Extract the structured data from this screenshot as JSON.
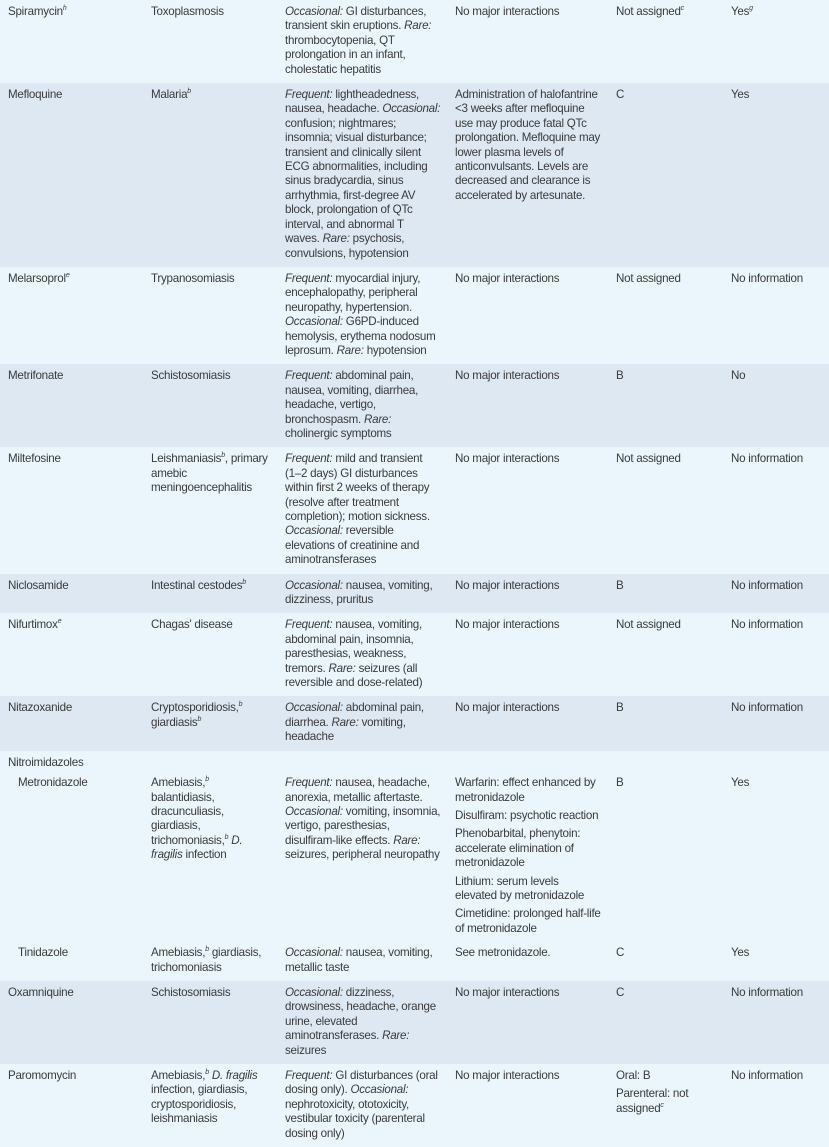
{
  "colors": {
    "row_light": "#eaf6fc",
    "row_dark": "#dde8f3",
    "text": "#3a3a3a"
  },
  "rows": [
    {
      "shade": "light",
      "name": [
        {
          "t": "Spiramycin"
        },
        {
          "sup": "h"
        }
      ],
      "indication": [
        [
          "Toxoplasmosis"
        ]
      ],
      "adverse": [
        [
          {
            "i": "Occasional:"
          },
          {
            "t": " GI disturbances, transient skin eruptions. "
          },
          {
            "i": "Rare:"
          },
          {
            "t": " thrombocytopenia, QT prolongation in an infant, cholestatic hepatitis"
          }
        ]
      ],
      "interactions": [
        [
          "No major interactions"
        ]
      ],
      "pregnancy": [
        [
          {
            "t": "Not assigned"
          },
          {
            "sup": "c"
          }
        ]
      ],
      "breastfeeding": [
        [
          {
            "t": "Yes"
          },
          {
            "sup": "g"
          }
        ]
      ]
    },
    {
      "shade": "dark",
      "name": [
        {
          "t": "Mefloquine"
        }
      ],
      "indication": [
        [
          {
            "t": "Malaria"
          },
          {
            "sup": "b"
          }
        ]
      ],
      "adverse": [
        [
          {
            "i": "Frequent:"
          },
          {
            "t": " lightheadedness, nausea, headache. "
          },
          {
            "i": "Occasional:"
          },
          {
            "t": " confusion; nightmares; insomnia; visual disturbance; transient and clinically silent ECG abnormalities, including sinus bradycardia, sinus arrhythmia, first-degree AV block, prolongation of QTc interval, and abnormal T waves. "
          },
          {
            "i": "Rare:"
          },
          {
            "t": " psychosis, convulsions, hypotension"
          }
        ]
      ],
      "interactions": [
        [
          "Administration of halofantrine <3 weeks after mefloquine use may produce fatal QTc prolongation. Mefloquine may lower plasma levels of anticonvulsants. Levels are decreased and clearance is accelerated by artesunate."
        ]
      ],
      "pregnancy": [
        [
          "C"
        ]
      ],
      "breastfeeding": [
        [
          "Yes"
        ]
      ]
    },
    {
      "shade": "light",
      "name": [
        {
          "t": "Melarsoprol"
        },
        {
          "sup": "e"
        }
      ],
      "indication": [
        [
          "Trypanosomiasis"
        ]
      ],
      "adverse": [
        [
          {
            "i": "Frequent:"
          },
          {
            "t": " myocardial injury, encephalopathy, peripheral neuropathy, hypertension. "
          },
          {
            "i": "Occasional:"
          },
          {
            "t": " G6PD-induced hemolysis, erythema nodosum leprosum. "
          },
          {
            "i": "Rare:"
          },
          {
            "t": " hypotension"
          }
        ]
      ],
      "interactions": [
        [
          "No major interactions"
        ]
      ],
      "pregnancy": [
        [
          "Not assigned"
        ]
      ],
      "breastfeeding": [
        [
          "No information"
        ]
      ]
    },
    {
      "shade": "dark",
      "name": [
        {
          "t": "Metrifonate"
        }
      ],
      "indication": [
        [
          "Schistosomiasis"
        ]
      ],
      "adverse": [
        [
          {
            "i": "Frequent:"
          },
          {
            "t": " abdominal pain, nausea, vomiting, diarrhea, headache, vertigo, bronchospasm. "
          },
          {
            "i": "Rare:"
          },
          {
            "t": " cholinergic symptoms"
          }
        ]
      ],
      "interactions": [
        [
          "No major interactions"
        ]
      ],
      "pregnancy": [
        [
          "B"
        ]
      ],
      "breastfeeding": [
        [
          "No"
        ]
      ]
    },
    {
      "shade": "light",
      "name": [
        {
          "t": "Miltefosine"
        }
      ],
      "indication": [
        [
          {
            "t": "Leishmaniasis"
          },
          {
            "sup": "b"
          },
          {
            "t": ", primary amebic meningoencephalitis"
          }
        ]
      ],
      "adverse": [
        [
          {
            "i": "Frequent:"
          },
          {
            "t": " mild and transient (1–2 days) GI disturbances within first 2 weeks of therapy (resolve after treatment completion); motion sickness. "
          },
          {
            "i": "Occasional:"
          },
          {
            "t": " reversible elevations of creatinine and aminotransferases"
          }
        ]
      ],
      "interactions": [
        [
          "No major interactions"
        ]
      ],
      "pregnancy": [
        [
          "Not assigned"
        ]
      ],
      "breastfeeding": [
        [
          "No information"
        ]
      ]
    },
    {
      "shade": "dark",
      "name": [
        {
          "t": "Niclosamide"
        }
      ],
      "indication": [
        [
          {
            "t": "Intestinal cestodes"
          },
          {
            "sup": "b"
          }
        ]
      ],
      "adverse": [
        [
          {
            "i": "Occasional:"
          },
          {
            "t": " nausea, vomiting, dizziness, pruritus"
          }
        ]
      ],
      "interactions": [
        [
          "No major interactions"
        ]
      ],
      "pregnancy": [
        [
          "B"
        ]
      ],
      "breastfeeding": [
        [
          "No information"
        ]
      ]
    },
    {
      "shade": "light",
      "name": [
        {
          "t": "Nifurtimox"
        },
        {
          "sup": "e"
        }
      ],
      "indication": [
        [
          "Chagas' disease"
        ]
      ],
      "adverse": [
        [
          {
            "i": "Frequent:"
          },
          {
            "t": " nausea, vomiting, abdominal pain, insomnia, paresthesias, weakness, tremors. "
          },
          {
            "i": "Rare:"
          },
          {
            "t": " seizures (all reversible and dose-related)"
          }
        ]
      ],
      "interactions": [
        [
          "No major interactions"
        ]
      ],
      "pregnancy": [
        [
          "Not assigned"
        ]
      ],
      "breastfeeding": [
        [
          "No information"
        ]
      ]
    },
    {
      "shade": "dark",
      "name": [
        {
          "t": "Nitazoxanide"
        }
      ],
      "indication": [
        [
          {
            "t": "Cryptosporidiosis,"
          },
          {
            "sup": "b"
          },
          {
            "t": " giardiasis"
          },
          {
            "sup": "b"
          }
        ]
      ],
      "adverse": [
        [
          {
            "i": "Occasional:"
          },
          {
            "t": " abdominal pain, diarrhea. "
          },
          {
            "i": "Rare:"
          },
          {
            "t": " vomiting, headache"
          }
        ]
      ],
      "interactions": [
        [
          "No major interactions"
        ]
      ],
      "pregnancy": [
        [
          "B"
        ]
      ],
      "breastfeeding": [
        [
          "No information"
        ]
      ]
    },
    {
      "shade": "light",
      "group": true,
      "name": [
        {
          "t": "Nitroimidazoles"
        }
      ]
    },
    {
      "shade": "light",
      "sub": true,
      "name": [
        {
          "t": "Metronidazole"
        }
      ],
      "indication": [
        [
          {
            "t": "Amebiasis,"
          },
          {
            "sup": "b"
          },
          {
            "t": " balantidiasis, dracunculiasis, giardiasis, trichomoniasis,"
          },
          {
            "sup": "b"
          },
          {
            "t": " "
          },
          {
            "i": "D. fragilis"
          },
          {
            "t": " infection"
          }
        ]
      ],
      "adverse": [
        [
          {
            "i": "Frequent:"
          },
          {
            "t": " nausea, headache, anorexia, metallic aftertaste. "
          },
          {
            "i": "Occasional:"
          },
          {
            "t": " vomiting, insomnia, vertigo, paresthesias, disulfiram-like effects. "
          },
          {
            "i": "Rare:"
          },
          {
            "t": " seizures, peripheral neuropathy"
          }
        ]
      ],
      "interactions": [
        [
          "Warfarin: effect enhanced by metronidazole"
        ],
        [
          "Disulfiram: psychotic reaction"
        ],
        [
          "Phenobarbital, phenytoin: accelerate elimination of metronidazole"
        ],
        [
          "Lithium: serum levels elevated by metronidazole"
        ],
        [
          "Cimetidine: prolonged half-life of metronidazole"
        ]
      ],
      "pregnancy": [
        [
          "B"
        ]
      ],
      "breastfeeding": [
        [
          "Yes"
        ]
      ]
    },
    {
      "shade": "light",
      "sub": true,
      "name": [
        {
          "t": "Tinidazole"
        }
      ],
      "indication": [
        [
          {
            "t": "Amebiasis,"
          },
          {
            "sup": "b"
          },
          {
            "t": " giardiasis, trichomoniasis"
          }
        ]
      ],
      "adverse": [
        [
          {
            "i": "Occasional:"
          },
          {
            "t": " nausea, vomiting, metallic taste"
          }
        ]
      ],
      "interactions": [
        [
          "See metronidazole."
        ]
      ],
      "pregnancy": [
        [
          "C"
        ]
      ],
      "breastfeeding": [
        [
          "Yes"
        ]
      ]
    },
    {
      "shade": "dark",
      "name": [
        {
          "t": "Oxamniquine"
        }
      ],
      "indication": [
        [
          "Schistosomiasis"
        ]
      ],
      "adverse": [
        [
          {
            "i": "Occasional:"
          },
          {
            "t": " dizziness, drowsiness, headache, orange urine, elevated aminotransferases. "
          },
          {
            "i": "Rare:"
          },
          {
            "t": " seizures"
          }
        ]
      ],
      "interactions": [
        [
          "No major interactions"
        ]
      ],
      "pregnancy": [
        [
          "C"
        ]
      ],
      "breastfeeding": [
        [
          "No information"
        ]
      ]
    },
    {
      "shade": "light",
      "name": [
        {
          "t": "Paromomycin"
        }
      ],
      "indication": [
        [
          {
            "t": "Amebiasis,"
          },
          {
            "sup": "b"
          },
          {
            "t": " "
          },
          {
            "i": "D. fragilis"
          },
          {
            "t": " infection, giardiasis, cryptosporidiosis, leishmaniasis"
          }
        ]
      ],
      "adverse": [
        [
          {
            "i": "Frequent:"
          },
          {
            "t": " GI disturbances (oral dosing only). "
          },
          {
            "i": "Occasional:"
          },
          {
            "t": " nephrotoxicity, ototoxicity, vestibular toxicity (parenteral dosing only)"
          }
        ]
      ],
      "interactions": [
        [
          "No major interactions"
        ]
      ],
      "pregnancy": [
        [
          "Oral: B"
        ],
        [
          {
            "t": "Parenteral: not assigned"
          },
          {
            "sup": "c"
          }
        ]
      ],
      "breastfeeding": [
        [
          "No information"
        ]
      ]
    }
  ]
}
